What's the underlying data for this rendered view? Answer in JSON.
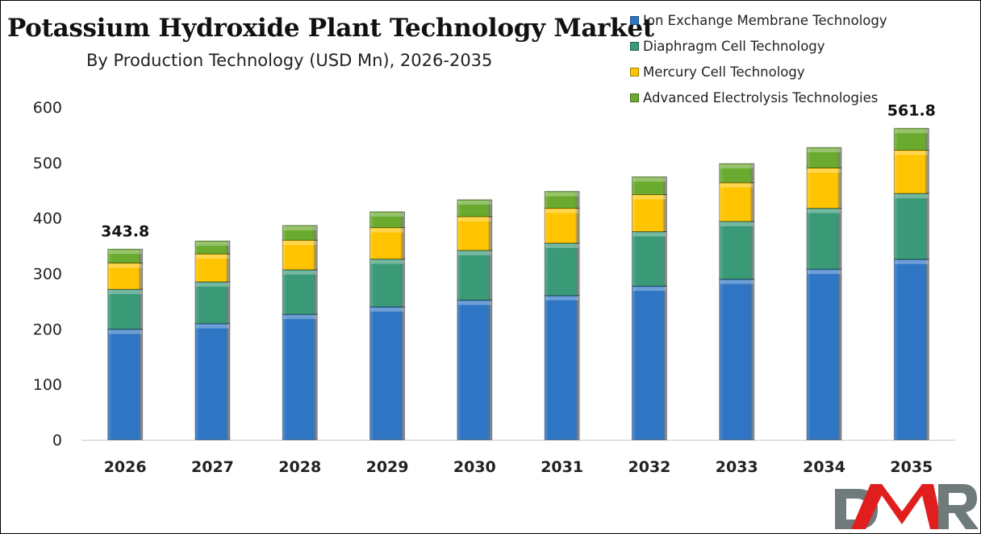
{
  "chart_data": {
    "type": "bar",
    "stacked": true,
    "title": "Potassium Hydroxide Plant Technology Market",
    "subtitle": "By Production Technology (USD Mn), 2026-2035",
    "xlabel": "",
    "ylabel": "",
    "ylim": [
      0,
      600
    ],
    "yticks": [
      "0",
      "100",
      "200",
      "300",
      "400",
      "500",
      "600"
    ],
    "grid": false,
    "legend_position": "top-right",
    "categories": [
      "2026",
      "2027",
      "2028",
      "2029",
      "2030",
      "2031",
      "2032",
      "2033",
      "2034",
      "2035"
    ],
    "series": [
      {
        "name": "Ion Exchange Membrane Technology",
        "color": "#2e75c4",
        "values": [
          199.5,
          209.7,
          226.3,
          239.8,
          251.9,
          260.2,
          277.2,
          289.7,
          307.7,
          325.6
        ]
      },
      {
        "name": "Diaphragm Cell Technology",
        "color": "#3a9a78",
        "values": [
          71.9,
          75.2,
          80.4,
          86.2,
          89.7,
          94.5,
          98.3,
          104.2,
          109.9,
          118.7
        ]
      },
      {
        "name": "Mercury Cell Technology",
        "color": "#ffc400",
        "values": [
          47.4,
          50.4,
          53.3,
          56.7,
          61.0,
          62.9,
          66.8,
          69.8,
          72.7,
          78.0
        ]
      },
      {
        "name": "Advanced Electrolysis Technologies",
        "color": "#6aaa2e",
        "values": [
          25.0,
          23.3,
          26.6,
          28.6,
          30.4,
          30.4,
          32.0,
          34.4,
          36.9,
          39.5
        ]
      }
    ],
    "annotations": [
      {
        "category": "2026",
        "label": "343.8"
      },
      {
        "category": "2035",
        "label": "561.8"
      }
    ]
  },
  "logo": {
    "text": "DMR"
  }
}
